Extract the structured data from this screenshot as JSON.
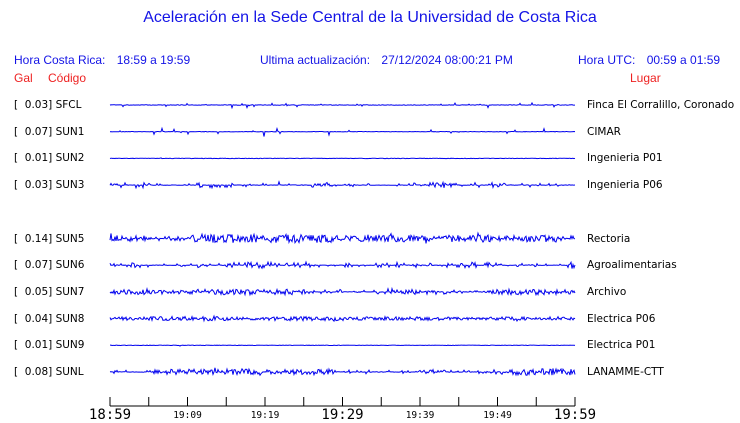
{
  "title": "Aceleración en la Sede Central de la Universidad de Costa Rica",
  "header": {
    "hora_cr_label": "Hora Costa Rica:",
    "hora_cr_value": "18:59 a 19:59",
    "update_label": "Ultima actualización:",
    "update_value": "27/12/2024 08:00:21 PM",
    "hora_utc_label": "Hora UTC:",
    "hora_utc_value": "00:59 a 01:59"
  },
  "columns": {
    "gal": "Gal",
    "codigo": "Código",
    "lugar": "Lugar"
  },
  "colors": {
    "text_blue": "#1414e6",
    "text_red": "#ee2222",
    "trace_blue": "#0000ee",
    "axis_black": "#000000"
  },
  "chart_data": {
    "type": "line",
    "subtype": "seismic-acceleration-traces",
    "unit": "Gal",
    "x_range": [
      "18:59",
      "19:59"
    ],
    "x_tick_interval_min": 5,
    "x_tick_labels": [
      "18:59",
      "19:09",
      "19:19",
      "19:29",
      "19:39",
      "19:49",
      "19:59"
    ],
    "big_label_every": 3,
    "stations": [
      {
        "row": 0,
        "gal": "0.03",
        "code": "SFCL",
        "place": "Finca El Corralillo, Coronado",
        "noise_density": 0.06,
        "noise_amp": 2.0,
        "spike_rate": 0.012
      },
      {
        "row": 1,
        "gal": "0.07",
        "code": "SUN1",
        "place": "CIMAR",
        "noise_density": 0.04,
        "noise_amp": 2.6,
        "spike_rate": 0.01
      },
      {
        "row": 2,
        "gal": "0.01",
        "code": "SUN2",
        "place": "Ingenieria P01",
        "noise_density": 0.01,
        "noise_amp": 0.5,
        "spike_rate": 0.0
      },
      {
        "row": 3,
        "gal": "0.03",
        "code": "SUN3",
        "place": "Ingenieria P06",
        "noise_density": 0.3,
        "noise_amp": 1.8,
        "spike_rate": 0.02
      },
      {
        "row": 5,
        "gal": "0.14",
        "code": "SUN5",
        "place": "Rectoria",
        "noise_density": 1.0,
        "noise_amp": 2.8,
        "spike_rate": 0.05
      },
      {
        "row": 6,
        "gal": "0.07",
        "code": "SUN6",
        "place": "Agroalimentarias",
        "noise_density": 0.35,
        "noise_amp": 2.0,
        "spike_rate": 0.03
      },
      {
        "row": 7,
        "gal": "0.05",
        "code": "SUN7",
        "place": "Archivo",
        "noise_density": 0.55,
        "noise_amp": 1.8,
        "spike_rate": 0.03
      },
      {
        "row": 8,
        "gal": "0.04",
        "code": "SUN8",
        "place": "Electrica P06",
        "noise_density": 1.0,
        "noise_amp": 1.4,
        "spike_rate": 0.02
      },
      {
        "row": 9,
        "gal": "0.01",
        "code": "SUN9",
        "place": "Electrica P01",
        "noise_density": 0.01,
        "noise_amp": 0.5,
        "spike_rate": 0.0
      },
      {
        "row": 10,
        "gal": "0.08",
        "code": "SUNL",
        "place": "LANAMME-CTT",
        "noise_density": 0.6,
        "noise_amp": 2.2,
        "spike_rate": 0.04
      }
    ]
  }
}
